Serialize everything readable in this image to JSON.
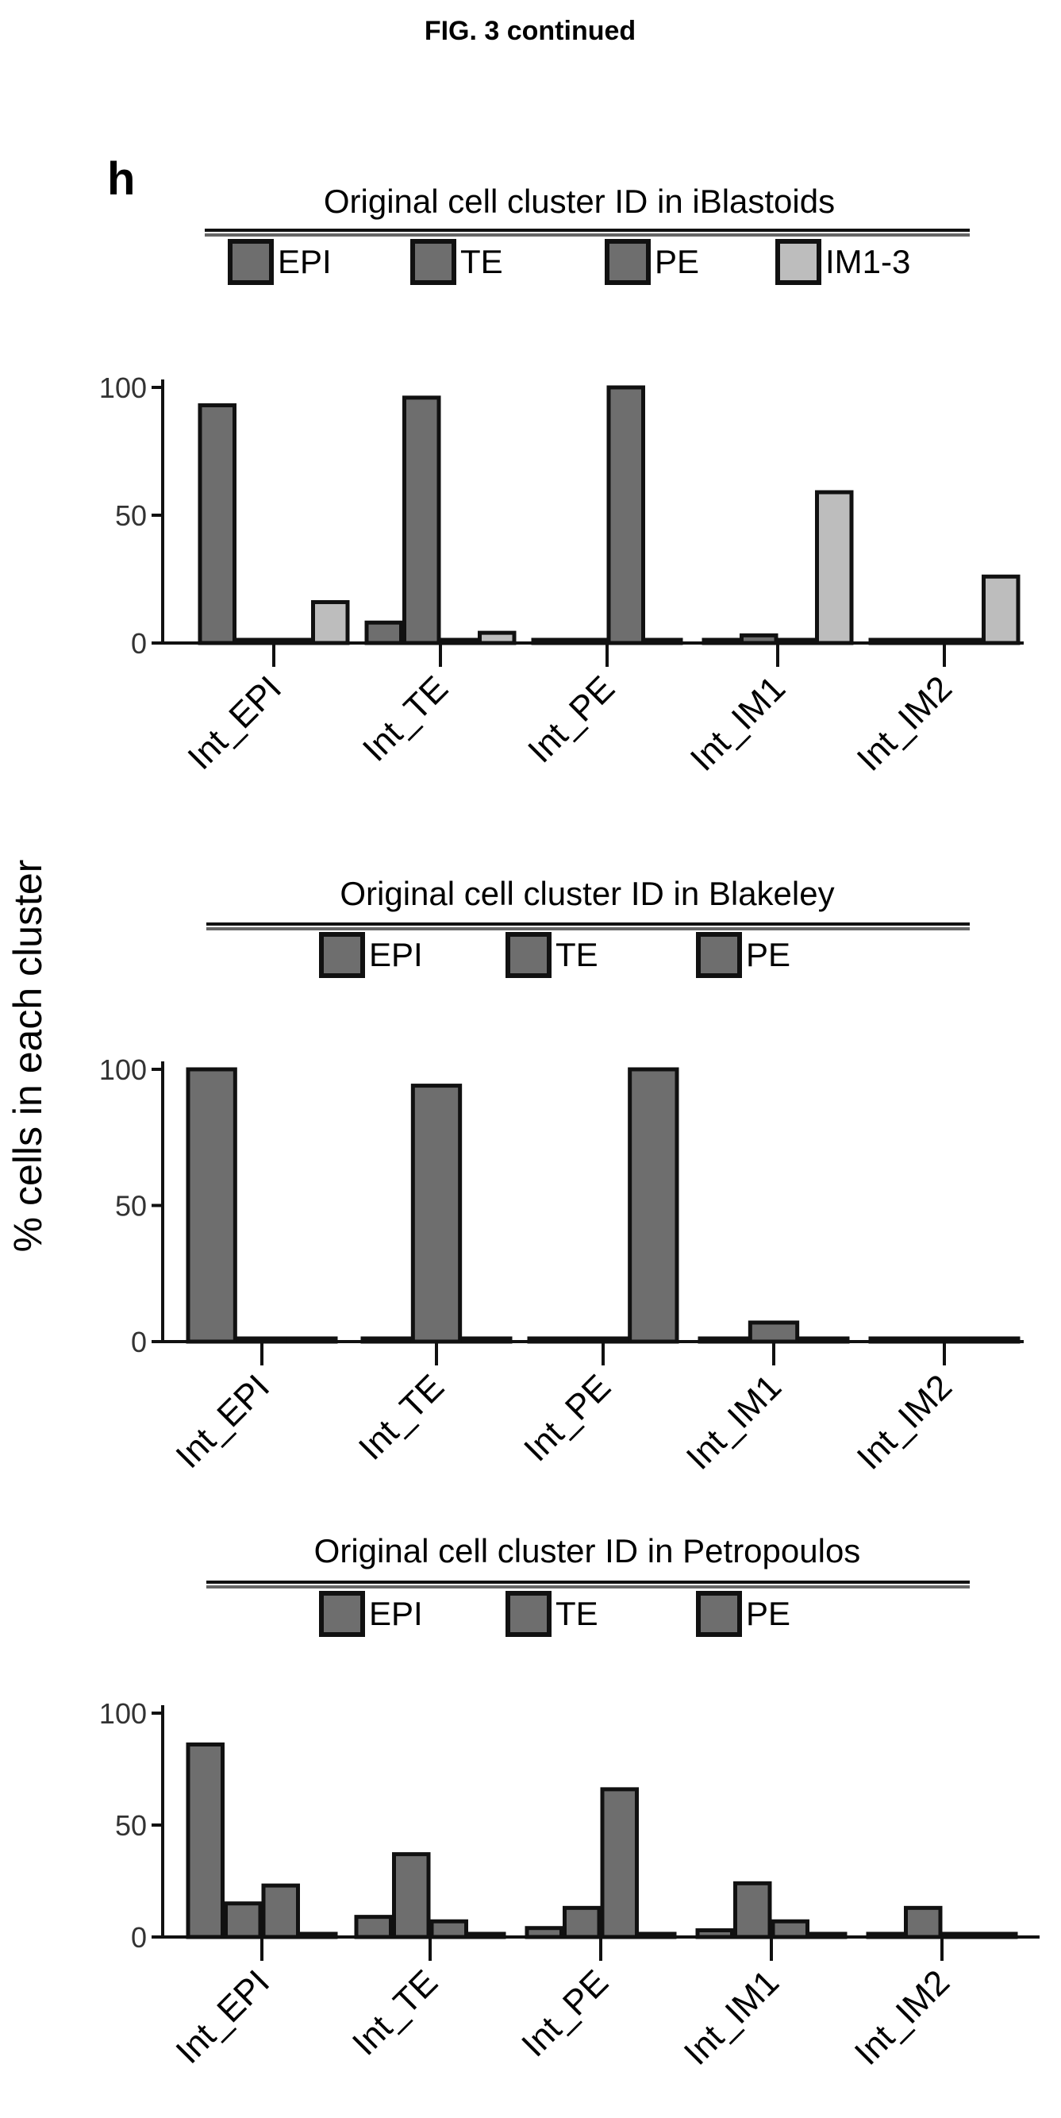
{
  "figure": {
    "title": "FIG. 3 continued",
    "panel_letter": "h",
    "ylabel": "% cells in each cluster"
  },
  "colors": {
    "bar_fill": "#6e6e6e",
    "bar_fill_light": "#bdbdbd",
    "stroke": "#111111",
    "rule": "#666666"
  },
  "chart_data": [
    {
      "type": "bar",
      "title": "Original cell cluster ID in iBlastoids",
      "categories": [
        "Int_EPI",
        "Int_TE",
        "Int_PE",
        "Int_IM1",
        "Int_IM2"
      ],
      "series": [
        {
          "name": "EPI",
          "values": [
            93,
            8,
            0,
            0,
            0
          ]
        },
        {
          "name": "TE",
          "values": [
            1,
            96,
            0,
            3,
            1
          ]
        },
        {
          "name": "PE",
          "values": [
            0,
            0,
            100,
            1,
            0
          ]
        },
        {
          "name": "IM1-3",
          "values": [
            16,
            4,
            0,
            59,
            26
          ]
        }
      ],
      "ylim": [
        0,
        100
      ],
      "yticks": [
        "0",
        "50",
        "100"
      ],
      "legend": "top",
      "grid": false
    },
    {
      "type": "bar",
      "title": "Original cell cluster ID in Blakeley",
      "categories": [
        "Int_EPI",
        "Int_TE",
        "Int_PE",
        "Int_IM1",
        "Int_IM2"
      ],
      "series": [
        {
          "name": "EPI",
          "values": [
            100,
            0,
            0,
            0,
            0
          ]
        },
        {
          "name": "TE",
          "values": [
            0,
            94,
            0,
            7,
            0
          ]
        },
        {
          "name": "PE",
          "values": [
            0,
            0,
            100,
            0,
            0
          ]
        }
      ],
      "ylim": [
        0,
        100
      ],
      "yticks": [
        "0",
        "50",
        "100"
      ],
      "legend": "top",
      "grid": false
    },
    {
      "type": "bar",
      "title": "Original cell cluster ID in Petropoulos",
      "categories": [
        "Int_EPI",
        "Int_TE",
        "Int_PE",
        "Int_IM1",
        "Int_IM2"
      ],
      "series": [
        {
          "name": "EPI",
          "values": [
            86,
            9,
            4,
            3,
            0
          ]
        },
        {
          "name": "TE",
          "values": [
            15,
            37,
            13,
            24,
            13
          ]
        },
        {
          "name": "PE",
          "values": [
            23,
            7,
            66,
            7,
            0
          ]
        },
        {
          "name": "",
          "values": [
            0,
            0,
            0,
            0,
            0
          ]
        }
      ],
      "ylim": [
        0,
        100
      ],
      "yticks": [
        "0",
        "50",
        "100"
      ],
      "legend": "top",
      "grid": false
    }
  ]
}
